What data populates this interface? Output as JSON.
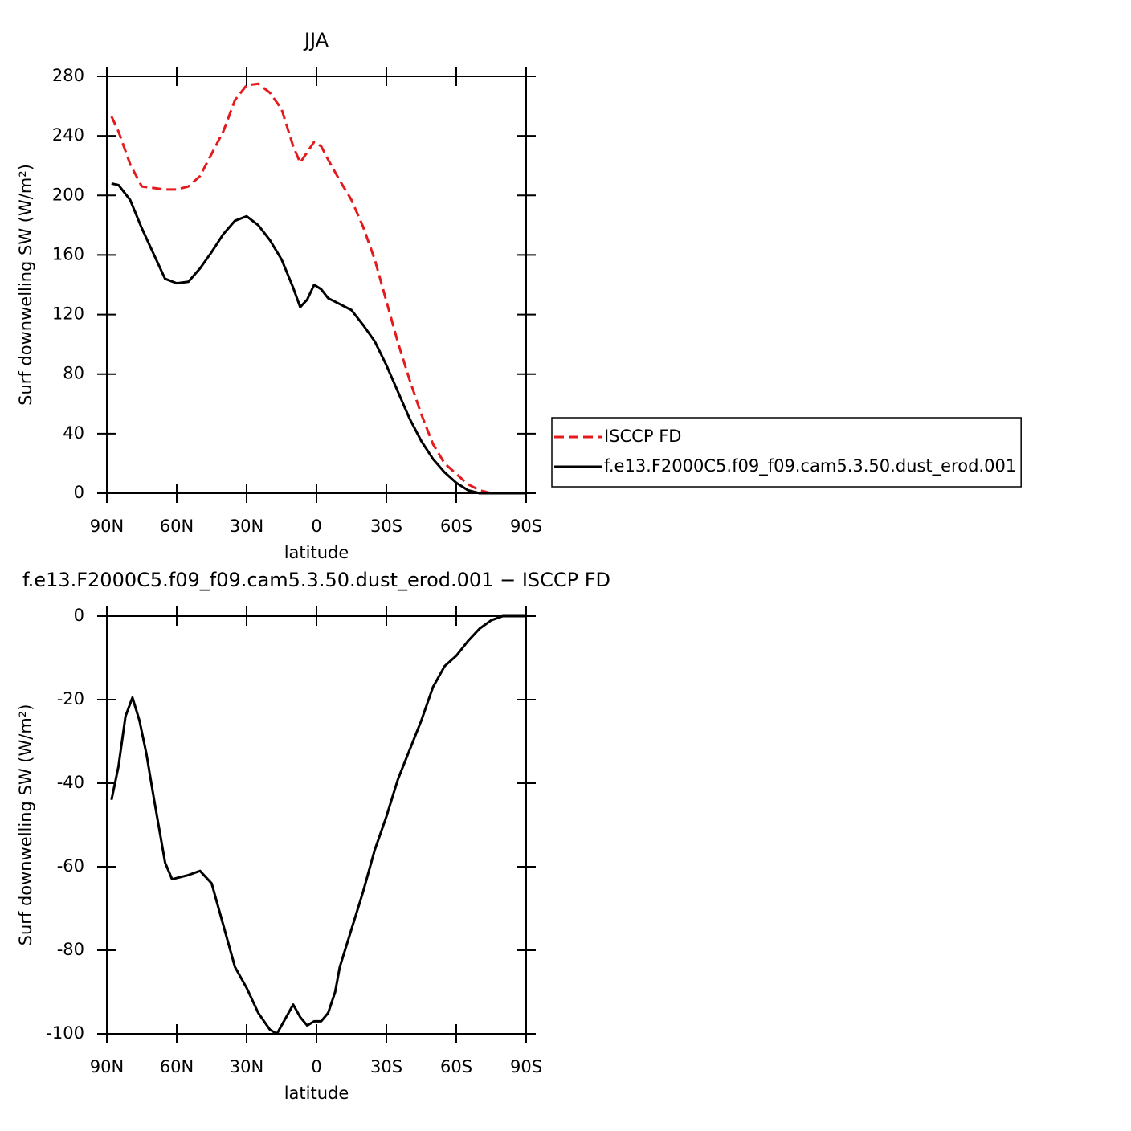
{
  "chart_data": [
    {
      "type": "line",
      "title": "JJA",
      "xlabel": "latitude",
      "ylabel": "Surf downwelling SW (W/m²)",
      "x": [
        88,
        85,
        80,
        75,
        70,
        65,
        60,
        55,
        50,
        45,
        40,
        35,
        30,
        25,
        20,
        15,
        10,
        7,
        4,
        1,
        -2,
        -5,
        -10,
        -15,
        -20,
        -25,
        -30,
        -35,
        -40,
        -45,
        -50,
        -55,
        -60,
        -65,
        -70,
        -75,
        -80,
        -85,
        -90
      ],
      "series": [
        {
          "name": "ISCCP FD",
          "color": "#e41a1c",
          "line_style": "dashed",
          "values": [
            253,
            243,
            221,
            206,
            205,
            204,
            204,
            206,
            213,
            228,
            243,
            264,
            274,
            275,
            269,
            258,
            233,
            222,
            229,
            236,
            233,
            224,
            210,
            197,
            179,
            157,
            129,
            101,
            76,
            53,
            33,
            20,
            13,
            6,
            2,
            0,
            0,
            0,
            0
          ]
        },
        {
          "name": "f.e13.F2000C5.f09_f09.cam5.3.50.dust_erod.001",
          "color": "#000000",
          "line_style": "solid",
          "values": [
            208,
            207,
            197,
            178,
            161,
            144,
            141,
            142,
            151,
            162,
            174,
            183,
            186,
            180,
            170,
            157,
            138,
            125,
            130,
            140,
            137,
            131,
            127,
            123,
            113,
            102,
            86,
            68,
            50,
            35,
            23,
            14,
            7,
            2,
            0,
            0,
            0,
            0,
            0
          ]
        }
      ],
      "xlim": [
        90,
        -90
      ],
      "xticks": [
        {
          "value": 90,
          "label": "90N"
        },
        {
          "value": 60,
          "label": "60N"
        },
        {
          "value": 30,
          "label": "30N"
        },
        0,
        {
          "value": -30,
          "label": "30S"
        },
        {
          "value": -60,
          "label": "60S"
        },
        {
          "value": -90,
          "label": "90S"
        }
      ],
      "ylim": [
        0,
        280
      ],
      "yticks": [
        0,
        40,
        80,
        120,
        160,
        200,
        240,
        280
      ],
      "legend": "right"
    },
    {
      "type": "line",
      "title": "f.e13.F2000C5.f09_f09.cam5.3.50.dust_erod.001 − ISCCP FD",
      "xlabel": "latitude",
      "ylabel": "Surf downwelling SW (W/m²)",
      "x": [
        88,
        85,
        82,
        79,
        76,
        73,
        70,
        65,
        62,
        55,
        50,
        45,
        40,
        35,
        30,
        25,
        20,
        17,
        14,
        10,
        7,
        4,
        1,
        -2,
        -5,
        -8,
        -10,
        -15,
        -20,
        -25,
        -30,
        -35,
        -40,
        -45,
        -50,
        -55,
        -60,
        -65,
        -70,
        -75,
        -80,
        -85,
        -90
      ],
      "series": [
        {
          "color": "#000000",
          "line_style": "solid",
          "values": [
            -44,
            -36,
            -24,
            -19.5,
            -25,
            -33,
            -43,
            -59,
            -63,
            -62,
            -61,
            -64,
            -74,
            -84,
            -89,
            -95,
            -99,
            -100,
            -97,
            -93,
            -96,
            -98,
            -97,
            -97,
            -95,
            -90,
            -84,
            -75,
            -66,
            -56,
            -48,
            -39,
            -32,
            -25,
            -17,
            -12,
            -9.5,
            -6,
            -3,
            -1,
            0,
            0,
            0
          ]
        }
      ],
      "xlim": [
        90,
        -90
      ],
      "xticks": [
        {
          "value": 90,
          "label": "90N"
        },
        {
          "value": 60,
          "label": "60N"
        },
        {
          "value": 30,
          "label": "30N"
        },
        0,
        {
          "value": -30,
          "label": "30S"
        },
        {
          "value": -60,
          "label": "60S"
        },
        {
          "value": -90,
          "label": "90S"
        }
      ],
      "ylim": [
        -100,
        0
      ],
      "yticks": [
        -100,
        -80,
        -60,
        -40,
        -20,
        0
      ]
    }
  ]
}
